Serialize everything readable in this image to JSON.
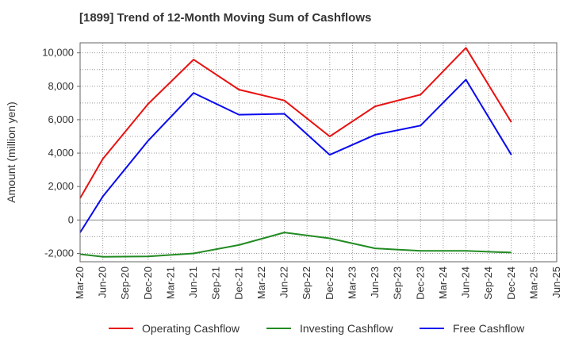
{
  "chart_data": {
    "type": "line",
    "title": "[1899]  Trend of 12-Month Moving Sum of Cashflows",
    "xlabel": "",
    "ylabel": "Amount (million yen)",
    "categories": [
      "Mar-20",
      "Jun-20",
      "Sep-20",
      "Dec-20",
      "Mar-21",
      "Jun-21",
      "Sep-21",
      "Dec-21",
      "Mar-22",
      "Jun-22",
      "Sep-22",
      "Dec-22",
      "Mar-23",
      "Jun-23",
      "Sep-23",
      "Dec-23",
      "Mar-24",
      "Jun-24",
      "Sep-24",
      "Dec-24",
      "Mar-25",
      "Jun-25"
    ],
    "ylim": [
      -2500,
      10600
    ],
    "yticks": [
      -2000,
      0,
      2000,
      4000,
      6000,
      8000,
      10000
    ],
    "ytick_labels": [
      "-2,000",
      "0",
      "2,000",
      "4,000",
      "6,000",
      "8,000",
      "10,000"
    ],
    "grid": true,
    "legend_position": "bottom",
    "series": [
      {
        "name": "Operating Cashflow",
        "color": "#e8110f",
        "values": [
          1300,
          3650,
          null,
          6950,
          null,
          9600,
          null,
          7800,
          null,
          7150,
          null,
          5000,
          null,
          6800,
          null,
          7500,
          null,
          10300,
          null,
          5850,
          null,
          null
        ]
      },
      {
        "name": "Investing Cashflow",
        "color": "#228b22",
        "values": [
          -2050,
          -2200,
          null,
          -2180,
          null,
          -2000,
          null,
          -1500,
          null,
          -750,
          null,
          -1100,
          null,
          -1700,
          null,
          -1850,
          null,
          -1850,
          null,
          -1950,
          null,
          null
        ]
      },
      {
        "name": "Free Cashflow",
        "color": "#0a0aee",
        "values": [
          -750,
          1400,
          null,
          4750,
          null,
          7600,
          null,
          6300,
          null,
          6350,
          null,
          3900,
          null,
          5100,
          null,
          5650,
          null,
          8400,
          null,
          3900,
          null,
          null
        ]
      }
    ]
  }
}
